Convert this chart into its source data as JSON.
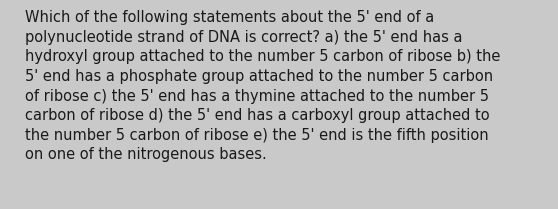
{
  "wrapped_text": "Which of the following statements about the 5' end of a\npolynucleotide strand of DNA is correct? a) the 5' end has a\nhydroxyl group attached to the number 5 carbon of ribose b) the\n5' end has a phosphate group attached to the number 5 carbon\nof ribose c) the 5' end has a thymine attached to the number 5\ncarbon of ribose d) the 5' end has a carboxyl group attached to\nthe number 5 carbon of ribose e) the 5' end is the fifth position\non one of the nitrogenous bases.",
  "background_color": "#c9c9c9",
  "text_color": "#1a1a1a",
  "font_size": 10.5,
  "fig_width": 5.58,
  "fig_height": 2.09,
  "dpi": 100
}
